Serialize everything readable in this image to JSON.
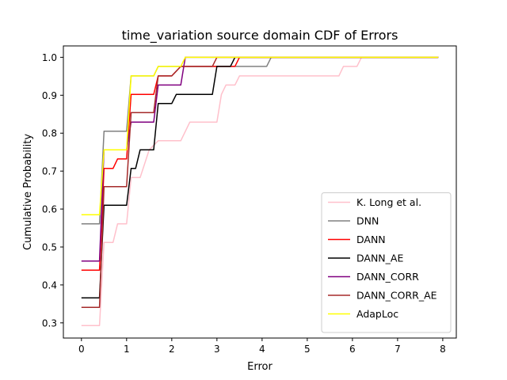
{
  "chart_data": {
    "type": "line",
    "title": "time_variation source domain CDF of Errors",
    "xlabel": "Error",
    "ylabel": "Cumulative Probability",
    "xlim": [
      -0.4,
      8.3
    ],
    "ylim": [
      0.26,
      1.03
    ],
    "xticks": [
      0,
      1,
      2,
      3,
      4,
      5,
      6,
      7,
      8
    ],
    "yticks": [
      0.3,
      0.4,
      0.5,
      0.6,
      0.7,
      0.8,
      0.9,
      1.0
    ],
    "ytick_labels": [
      "0.3",
      "0.4",
      "0.5",
      "0.6",
      "0.7",
      "0.8",
      "0.9",
      "1.0"
    ],
    "legend_position": "lower-right",
    "grid": false,
    "series": [
      {
        "name": "K. Long et al.",
        "color": "#ffc0cb",
        "x": [
          0,
          0.4,
          0.5,
          0.7,
          0.8,
          1.0,
          1.1,
          1.3,
          1.5,
          1.7,
          2.0,
          2.2,
          2.4,
          2.7,
          3.0,
          3.1,
          3.2,
          3.4,
          3.5,
          4.0,
          5.0,
          5.7,
          5.8,
          6.1,
          6.2,
          7.9
        ],
        "y": [
          0.293,
          0.293,
          0.512,
          0.512,
          0.561,
          0.561,
          0.683,
          0.683,
          0.756,
          0.78,
          0.78,
          0.78,
          0.829,
          0.829,
          0.829,
          0.902,
          0.927,
          0.927,
          0.951,
          0.951,
          0.951,
          0.951,
          0.976,
          0.976,
          1.0,
          1.0
        ]
      },
      {
        "name": "DNN",
        "color": "#808080",
        "x": [
          0,
          0.4,
          0.5,
          0.7,
          1.0,
          1.1,
          1.6,
          1.7,
          2.0,
          3.4,
          3.5,
          4.1,
          4.2,
          7.9
        ],
        "y": [
          0.561,
          0.561,
          0.805,
          0.805,
          0.805,
          0.951,
          0.951,
          0.976,
          0.976,
          0.976,
          0.976,
          0.976,
          1.0,
          1.0
        ]
      },
      {
        "name": "DANN",
        "color": "#ff0000",
        "x": [
          0,
          0.4,
          0.5,
          0.7,
          0.8,
          1.0,
          1.1,
          1.6,
          1.7,
          2.0,
          2.2,
          2.4,
          3.0,
          3.4,
          3.5,
          7.9
        ],
        "y": [
          0.439,
          0.439,
          0.707,
          0.707,
          0.732,
          0.732,
          0.902,
          0.902,
          0.951,
          0.951,
          0.976,
          0.976,
          0.976,
          0.976,
          1.0,
          1.0
        ]
      },
      {
        "name": "DANN_AE",
        "color": "#000000",
        "x": [
          0,
          0.4,
          0.5,
          1.0,
          1.1,
          1.2,
          1.3,
          1.6,
          1.7,
          2.0,
          2.1,
          2.4,
          2.9,
          3.0,
          3.3,
          3.4,
          7.9
        ],
        "y": [
          0.366,
          0.366,
          0.61,
          0.61,
          0.707,
          0.707,
          0.756,
          0.756,
          0.878,
          0.878,
          0.902,
          0.902,
          0.902,
          0.976,
          0.976,
          1.0,
          1.0
        ]
      },
      {
        "name": "DANN_CORR",
        "color": "#800080",
        "x": [
          0,
          0.4,
          0.5,
          1.0,
          1.1,
          1.6,
          1.7,
          2.2,
          2.3,
          7.9
        ],
        "y": [
          0.463,
          0.463,
          0.756,
          0.756,
          0.829,
          0.829,
          0.927,
          0.927,
          1.0,
          1.0
        ]
      },
      {
        "name": "DANN_CORR_AE",
        "color": "#a52a2a",
        "x": [
          0,
          0.4,
          0.5,
          1.0,
          1.1,
          1.6,
          1.7,
          2.0,
          2.2,
          2.9,
          3.0,
          7.9
        ],
        "y": [
          0.341,
          0.341,
          0.659,
          0.659,
          0.854,
          0.854,
          0.951,
          0.951,
          0.976,
          0.976,
          1.0,
          1.0
        ]
      },
      {
        "name": "AdapLoc",
        "color": "#ffff00",
        "x": [
          0,
          0.4,
          0.5,
          1.0,
          1.1,
          1.6,
          1.7,
          2.2,
          2.3,
          7.9
        ],
        "y": [
          0.585,
          0.585,
          0.756,
          0.756,
          0.951,
          0.951,
          0.976,
          0.976,
          1.0,
          1.0
        ]
      }
    ]
  }
}
